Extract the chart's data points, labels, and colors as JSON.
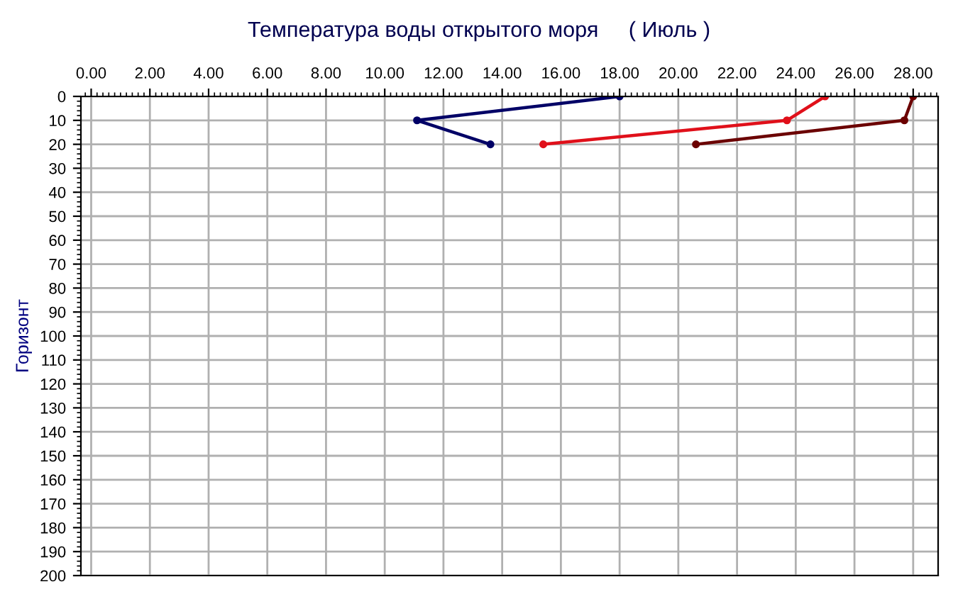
{
  "chart_data": {
    "type": "line",
    "title": "Температура воды открытого моря     ( Июль )",
    "ylabel": "Горизонт",
    "series": [
      {
        "color": "#000066",
        "x": [
          18.0,
          11.1,
          13.6
        ],
        "values": [
          0,
          10,
          20
        ]
      },
      {
        "color": "#e0101a",
        "x": [
          25.0,
          23.7,
          15.4
        ],
        "values": [
          0,
          10,
          20
        ]
      },
      {
        "color": "#6b0000",
        "x": [
          28.0,
          27.7,
          20.6
        ],
        "values": [
          0,
          10,
          20
        ]
      }
    ],
    "xlim": [
      -0.35,
      28.85
    ],
    "ylim": [
      200,
      0
    ],
    "xticks": [
      {
        "value": 0,
        "label": "0.00"
      },
      {
        "value": 2,
        "label": "2.00"
      },
      {
        "value": 4,
        "label": "4.00"
      },
      {
        "value": 6,
        "label": "6.00"
      },
      {
        "value": 8,
        "label": "8.00"
      },
      {
        "value": 10,
        "label": "10.00"
      },
      {
        "value": 12,
        "label": "12.00"
      },
      {
        "value": 14,
        "label": "14.00"
      },
      {
        "value": 16,
        "label": "16.00"
      },
      {
        "value": 18,
        "label": "18.00"
      },
      {
        "value": 20,
        "label": "20.00"
      },
      {
        "value": 22,
        "label": "22.00"
      },
      {
        "value": 24,
        "label": "24.00"
      },
      {
        "value": 26,
        "label": "26.00"
      },
      {
        "value": 28,
        "label": "28.00"
      }
    ],
    "yticks": [
      0,
      10,
      20,
      30,
      40,
      50,
      60,
      70,
      80,
      90,
      100,
      110,
      120,
      130,
      140,
      150,
      160,
      170,
      180,
      190,
      200
    ],
    "grid": true,
    "marker": "circle",
    "line_style": "solid"
  }
}
